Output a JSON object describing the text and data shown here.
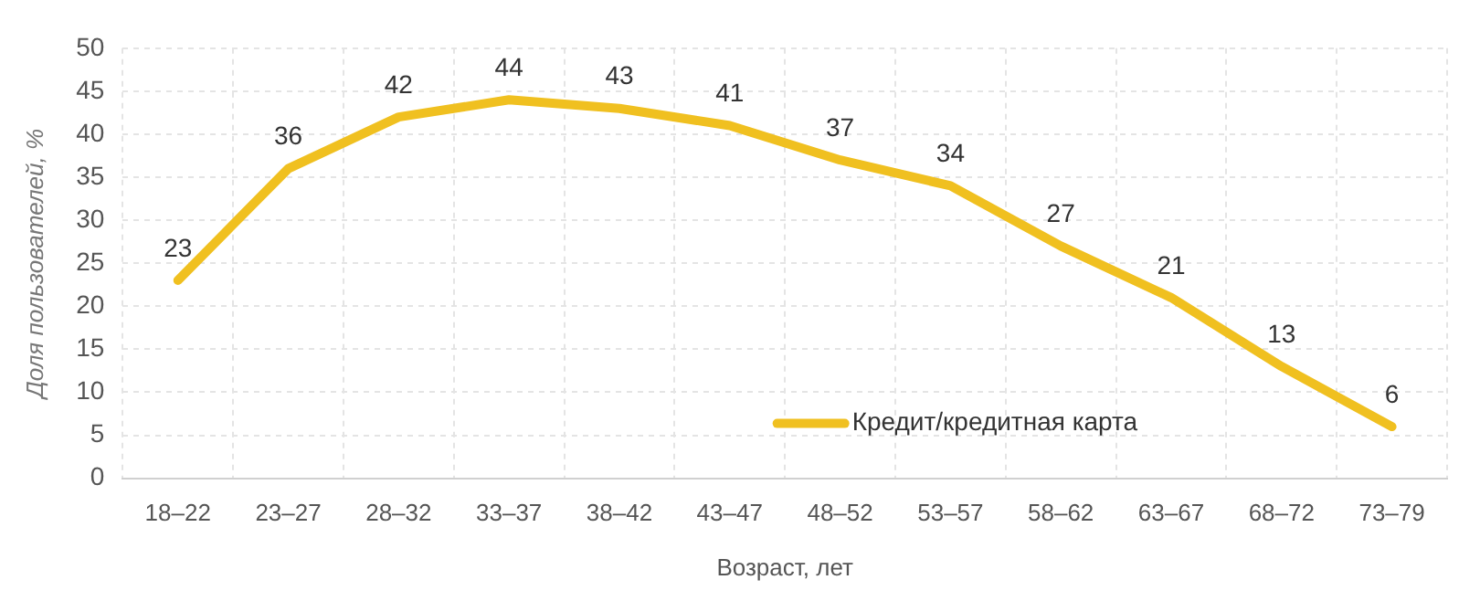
{
  "chart_data": {
    "type": "line",
    "xlabel": "Возраст, лет",
    "ylabel": "Доля пользователей, %",
    "categories": [
      "18–22",
      "23–27",
      "28–32",
      "33–37",
      "38–42",
      "43–47",
      "48–52",
      "53–57",
      "58–62",
      "63–67",
      "68–72",
      "73–79"
    ],
    "series": [
      {
        "name": "Кредит/кредитная карта",
        "color": "#f0c020",
        "values": [
          23,
          36,
          42,
          44,
          43,
          41,
          37,
          34,
          27,
          21,
          13,
          6
        ]
      }
    ],
    "ylim": [
      0,
      50
    ],
    "yticks": [
      0,
      5,
      10,
      15,
      20,
      25,
      30,
      35,
      40,
      45,
      50
    ],
    "grid": true,
    "legend": "bottom",
    "marker": "none",
    "line_style": "solid",
    "data_labels": true
  }
}
